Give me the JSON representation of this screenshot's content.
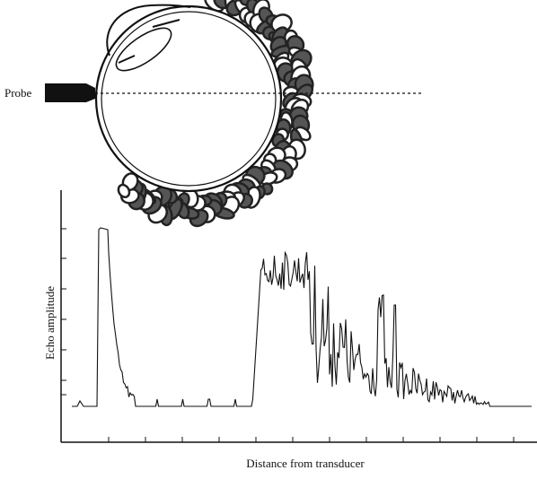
{
  "labels": {
    "probe": "Probe",
    "y_axis": "Echo amplitude",
    "x_axis": "Distance from transducer"
  }
}
